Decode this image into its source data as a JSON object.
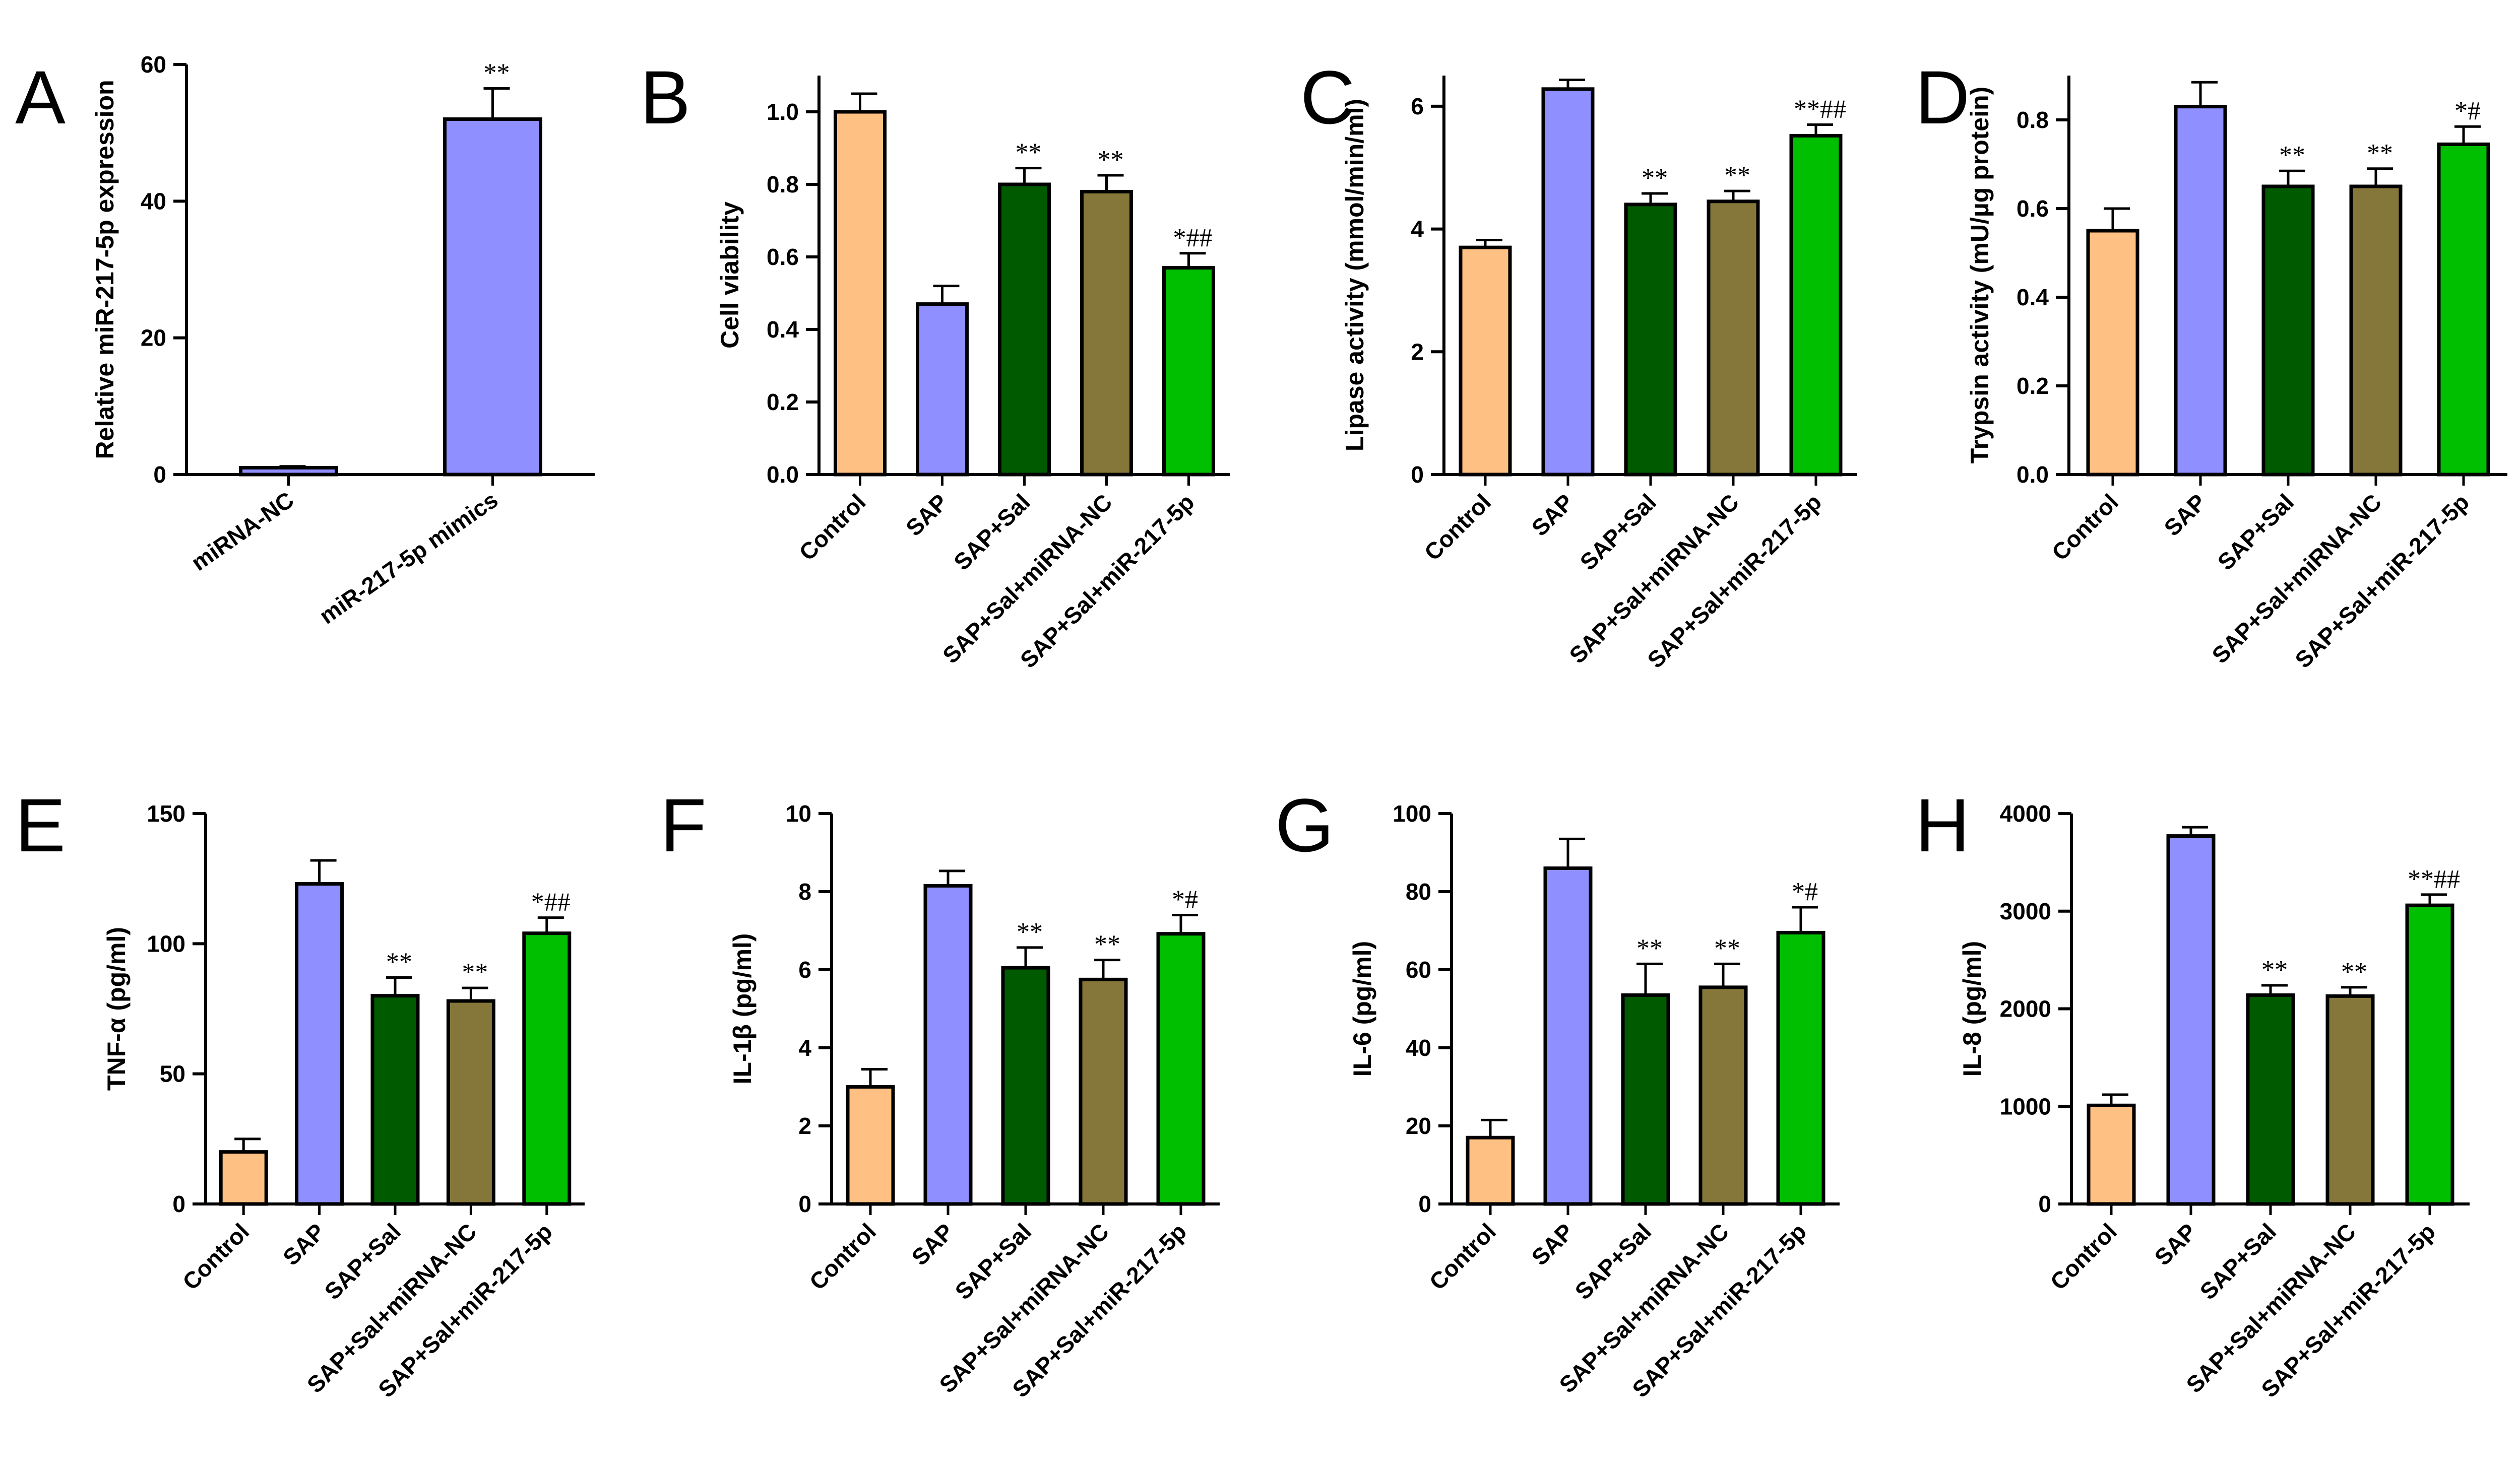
{
  "colors": {
    "control": "#FFC183",
    "sap": "#8F8FFF",
    "sap_sal": "#005A00",
    "sap_sal_mirna_nc": "#857639",
    "sap_sal_mir": "#00BE00",
    "axis": "#000000"
  },
  "chart_data": [
    {
      "id": "A",
      "type": "bar",
      "panel_letter": "A",
      "title": "",
      "xlabel": "",
      "ylabel": "Relative miR-217-5p expression",
      "ylim": [
        0,
        60
      ],
      "yticks": [
        "0",
        "20",
        "40",
        "60"
      ],
      "categories": [
        "miRNA-NC",
        "miR-217-5p mimics"
      ],
      "values": [
        1,
        52
      ],
      "errors": [
        0.2,
        4.5
      ],
      "significance": [
        "",
        "**"
      ],
      "bar_colors": [
        "#8F8FFF",
        "#8F8FFF"
      ]
    },
    {
      "id": "B",
      "type": "bar",
      "panel_letter": "B",
      "title": "",
      "xlabel": "",
      "ylabel": "Cell viability",
      "ylim": [
        0,
        1.1
      ],
      "yticks": [
        "0.0",
        "0.2",
        "0.4",
        "0.6",
        "0.8",
        "1.0"
      ],
      "categories": [
        "Control",
        "SAP",
        "SAP+Sal",
        "SAP+Sal+miRNA-NC",
        "SAP+Sal+miR-217-5p"
      ],
      "values": [
        1.0,
        0.47,
        0.8,
        0.78,
        0.57
      ],
      "errors": [
        0.05,
        0.05,
        0.045,
        0.045,
        0.04
      ],
      "significance": [
        "",
        "",
        "**",
        "**",
        "*##"
      ],
      "bar_colors": [
        "#FFC183",
        "#8F8FFF",
        "#005A00",
        "#857639",
        "#00BE00"
      ]
    },
    {
      "id": "C",
      "type": "bar",
      "panel_letter": "C",
      "title": "",
      "xlabel": "",
      "ylabel": "Lipase activity (mmol/min/ml)",
      "ylim": [
        0,
        6.5
      ],
      "yticks": [
        "0",
        "2",
        "4",
        "6"
      ],
      "categories": [
        "Control",
        "SAP",
        "SAP+Sal",
        "SAP+Sal+miRNA-NC",
        "SAP+Sal+miR-217-5p"
      ],
      "values": [
        3.7,
        6.28,
        4.4,
        4.45,
        5.52
      ],
      "errors": [
        0.12,
        0.15,
        0.18,
        0.17,
        0.18
      ],
      "significance": [
        "",
        "",
        "**",
        "**",
        "**##"
      ],
      "bar_colors": [
        "#FFC183",
        "#8F8FFF",
        "#005A00",
        "#857639",
        "#00BE00"
      ]
    },
    {
      "id": "D",
      "type": "bar",
      "panel_letter": "D",
      "title": "",
      "xlabel": "",
      "ylabel": "Trypsin activity (mU/µg protein)",
      "ylim": [
        0,
        0.9
      ],
      "yticks": [
        "0.0",
        "0.2",
        "0.4",
        "0.6",
        "0.8"
      ],
      "categories": [
        "Control",
        "SAP",
        "SAP+Sal",
        "SAP+Sal+miRNA-NC",
        "SAP+Sal+miR-217-5p"
      ],
      "values": [
        0.55,
        0.83,
        0.65,
        0.65,
        0.745
      ],
      "errors": [
        0.05,
        0.055,
        0.035,
        0.04,
        0.04
      ],
      "significance": [
        "",
        "",
        "**",
        "**",
        "*#"
      ],
      "bar_colors": [
        "#FFC183",
        "#8F8FFF",
        "#005A00",
        "#857639",
        "#00BE00"
      ]
    },
    {
      "id": "E",
      "type": "bar",
      "panel_letter": "E",
      "title": "",
      "xlabel": "",
      "ylabel": "TNF-α (pg/ml)",
      "ylim": [
        0,
        150
      ],
      "yticks": [
        "0",
        "50",
        "100",
        "150"
      ],
      "categories": [
        "Control",
        "SAP",
        "SAP+Sal",
        "SAP+Sal+miRNA-NC",
        "SAP+Sal+miR-217-5p"
      ],
      "values": [
        20,
        123,
        80,
        78,
        104
      ],
      "errors": [
        5,
        9,
        7,
        5,
        6
      ],
      "significance": [
        "",
        "",
        "**",
        "**",
        "*##"
      ],
      "bar_colors": [
        "#FFC183",
        "#8F8FFF",
        "#005A00",
        "#857639",
        "#00BE00"
      ]
    },
    {
      "id": "F",
      "type": "bar",
      "panel_letter": "F",
      "title": "",
      "xlabel": "",
      "ylabel": "IL-1β (pg/ml)",
      "ylim": [
        0,
        10
      ],
      "yticks": [
        "0",
        "2",
        "4",
        "6",
        "8",
        "10"
      ],
      "categories": [
        "Control",
        "SAP",
        "SAP+Sal",
        "SAP+Sal+miRNA-NC",
        "SAP+Sal+miR-217-5p"
      ],
      "values": [
        3.0,
        8.15,
        6.05,
        5.75,
        6.92
      ],
      "errors": [
        0.45,
        0.38,
        0.52,
        0.5,
        0.48
      ],
      "significance": [
        "",
        "",
        "**",
        "**",
        "*#"
      ],
      "bar_colors": [
        "#FFC183",
        "#8F8FFF",
        "#005A00",
        "#857639",
        "#00BE00"
      ]
    },
    {
      "id": "G",
      "type": "bar",
      "panel_letter": "G",
      "title": "",
      "xlabel": "",
      "ylabel": "IL-6 (pg/ml)",
      "ylim": [
        0,
        100
      ],
      "yticks": [
        "0",
        "20",
        "40",
        "60",
        "80",
        "100"
      ],
      "categories": [
        "Control",
        "SAP",
        "SAP+Sal",
        "SAP+Sal+miRNA-NC",
        "SAP+Sal+miR-217-5p"
      ],
      "values": [
        17,
        86,
        53.5,
        55.5,
        69.5
      ],
      "errors": [
        4.5,
        7.5,
        8,
        6,
        6.5
      ],
      "significance": [
        "",
        "",
        "**",
        "**",
        "*#"
      ],
      "bar_colors": [
        "#FFC183",
        "#8F8FFF",
        "#005A00",
        "#857639",
        "#00BE00"
      ]
    },
    {
      "id": "H",
      "type": "bar",
      "panel_letter": "H",
      "title": "",
      "xlabel": "",
      "ylabel": "IL-8 (pg/ml)",
      "ylim": [
        0,
        4000
      ],
      "yticks": [
        "0",
        "1000",
        "2000",
        "3000",
        "4000"
      ],
      "categories": [
        "Control",
        "SAP",
        "SAP+Sal",
        "SAP+Sal+miRNA-NC",
        "SAP+Sal+miR-217-5p"
      ],
      "values": [
        1010,
        3770,
        2140,
        2130,
        3060
      ],
      "errors": [
        110,
        90,
        100,
        90,
        110
      ],
      "significance": [
        "",
        "",
        "**",
        "**",
        "**##"
      ],
      "bar_colors": [
        "#FFC183",
        "#8F8FFF",
        "#005A00",
        "#857639",
        "#00BE00"
      ]
    }
  ]
}
